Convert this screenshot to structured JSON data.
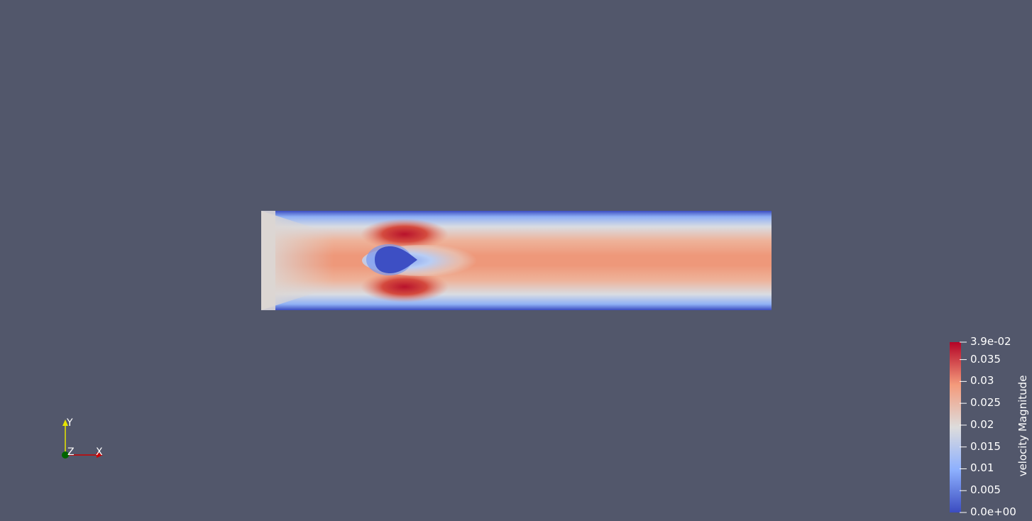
{
  "view": {
    "background_color": "#52576b"
  },
  "field": {
    "colormap": [
      "#3b4cc0",
      "#dddcdc",
      "#b40426"
    ],
    "inlet_color": "#dad5d2",
    "core_color": "#ee9a7c",
    "obstacle_color": "#3d4fc4"
  },
  "scalar_bar": {
    "title": "velocity Magnitude",
    "range": [
      0.0,
      0.039
    ],
    "ticks": [
      {
        "value": 0.039,
        "label": "3.9e-02"
      },
      {
        "value": 0.035,
        "label": "0.035"
      },
      {
        "value": 0.03,
        "label": "0.03"
      },
      {
        "value": 0.025,
        "label": "0.025"
      },
      {
        "value": 0.02,
        "label": "0.02"
      },
      {
        "value": 0.015,
        "label": "0.015"
      },
      {
        "value": 0.01,
        "label": "0.01"
      },
      {
        "value": 0.005,
        "label": "0.005"
      },
      {
        "value": 0.0,
        "label": "0.0e+00"
      }
    ]
  },
  "orientation_axes": {
    "x_label": "X",
    "y_label": "Y",
    "z_label": "Z",
    "x_color": "#cc0000",
    "y_color": "#e6e600",
    "z_color": "#006400"
  }
}
